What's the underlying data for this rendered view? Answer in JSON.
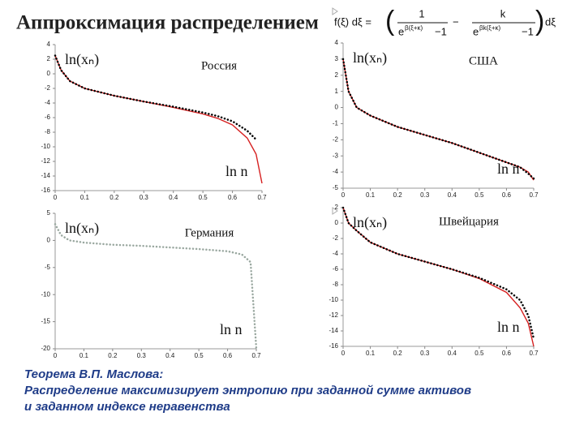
{
  "slide": {
    "title": "Аппроксимация распределением",
    "formula": {
      "lhs": "f(ξ) dξ =",
      "num1": "1",
      "den1_base": "e",
      "den1_exp": "β(ξ+κ)",
      "den1_tail": "−1",
      "minus": "−",
      "num2": "k",
      "den2_base": "e",
      "den2_exp": "βk(ξ+κ)",
      "den2_tail": "−1",
      "rhs": "dξ"
    },
    "theorem": [
      "Теорема В.П. Маслова:",
      "Распределение максимизирует энтропию при заданной сумме активов",
      "и заданном индексе неравенства"
    ]
  },
  "chart_data": [
    {
      "type": "line",
      "title": "Россия",
      "y_label": "ln(xₙ)",
      "x_label": "ln n",
      "x": [
        0,
        0.02,
        0.05,
        0.1,
        0.2,
        0.3,
        0.4,
        0.5,
        0.55,
        0.6,
        0.65,
        0.68,
        0.7
      ],
      "series": [
        {
          "color": "#d62020",
          "style": "solid",
          "values": [
            2.5,
            0.5,
            -1,
            -2,
            -3,
            -3.8,
            -4.6,
            -5.5,
            -6.1,
            -7,
            -8.8,
            -11,
            -15
          ]
        },
        {
          "color": "#000000",
          "style": "dotted",
          "values": [
            2.5,
            0.5,
            -1,
            -2,
            -3,
            -3.8,
            -4.5,
            -5.3,
            -5.8,
            -6.5,
            -7.8,
            -9,
            null
          ]
        }
      ],
      "xlim": [
        0,
        0.7
      ],
      "xticks": [
        0,
        0.1,
        0.2,
        0.3,
        0.4,
        0.5,
        0.6,
        0.7
      ],
      "ylim": [
        -16,
        4
      ],
      "yticks": [
        4,
        2,
        0,
        -2,
        -4,
        -6,
        -8,
        -10,
        -12,
        -14,
        -16
      ]
    },
    {
      "type": "line",
      "title": "США",
      "y_label": "ln(xₙ)",
      "x_label": "ln n",
      "x": [
        0,
        0.02,
        0.05,
        0.1,
        0.2,
        0.3,
        0.4,
        0.5,
        0.6,
        0.65,
        0.68,
        0.7
      ],
      "series": [
        {
          "color": "#d62020",
          "style": "solid",
          "values": [
            3,
            1,
            0,
            -0.5,
            -1.2,
            -1.7,
            -2.2,
            -2.8,
            -3.4,
            -3.7,
            -4,
            -4.5
          ]
        },
        {
          "color": "#000000",
          "style": "dotted",
          "values": [
            3,
            1,
            0,
            -0.5,
            -1.2,
            -1.7,
            -2.2,
            -2.8,
            -3.4,
            -3.7,
            -4.1,
            -4.4
          ]
        }
      ],
      "xlim": [
        0,
        0.7
      ],
      "xticks": [
        0,
        0.1,
        0.2,
        0.3,
        0.4,
        0.5,
        0.6,
        0.7
      ],
      "ylim": [
        -5,
        4
      ],
      "yticks": [
        4,
        3,
        2,
        1,
        0,
        -1,
        -2,
        -3,
        -4,
        -5
      ]
    },
    {
      "type": "line",
      "title": "Германия",
      "y_label": "ln(xₙ)",
      "x_label": "ln n",
      "x": [
        0,
        0.02,
        0.05,
        0.1,
        0.2,
        0.3,
        0.4,
        0.5,
        0.6,
        0.65,
        0.68,
        0.7
      ],
      "series": [
        {
          "color": "#9aa8a0",
          "style": "dotted",
          "values": [
            3,
            1,
            0,
            -0.4,
            -0.8,
            -1,
            -1.3,
            -1.6,
            -2,
            -2.6,
            -4,
            -20
          ]
        }
      ],
      "xlim": [
        0,
        0.7
      ],
      "xticks": [
        0,
        0.1,
        0.2,
        0.3,
        0.4,
        0.5,
        0.6,
        0.7
      ],
      "ylim": [
        -20,
        5
      ],
      "yticks": [
        5,
        0,
        -5,
        -10,
        -15,
        -20
      ]
    },
    {
      "type": "line",
      "title": "Швейцария",
      "y_label": "ln(xₙ)",
      "x_label": "ln n",
      "x": [
        0,
        0.02,
        0.05,
        0.1,
        0.2,
        0.3,
        0.4,
        0.5,
        0.6,
        0.65,
        0.68,
        0.7
      ],
      "series": [
        {
          "color": "#d62020",
          "style": "solid",
          "values": [
            2,
            0,
            -1,
            -2.5,
            -4,
            -5,
            -6,
            -7.2,
            -9,
            -11,
            -13,
            -16
          ]
        },
        {
          "color": "#000000",
          "style": "dotted",
          "values": [
            2,
            0,
            -1,
            -2.5,
            -4,
            -5,
            -6,
            -7.1,
            -8.6,
            -10,
            -12,
            -15
          ]
        }
      ],
      "xlim": [
        0,
        0.7
      ],
      "xticks": [
        0,
        0.1,
        0.2,
        0.3,
        0.4,
        0.5,
        0.6,
        0.7
      ],
      "ylim": [
        -16,
        2
      ],
      "yticks": [
        2,
        0,
        -2,
        -4,
        -6,
        -8,
        -10,
        -12,
        -14,
        -16
      ]
    }
  ]
}
